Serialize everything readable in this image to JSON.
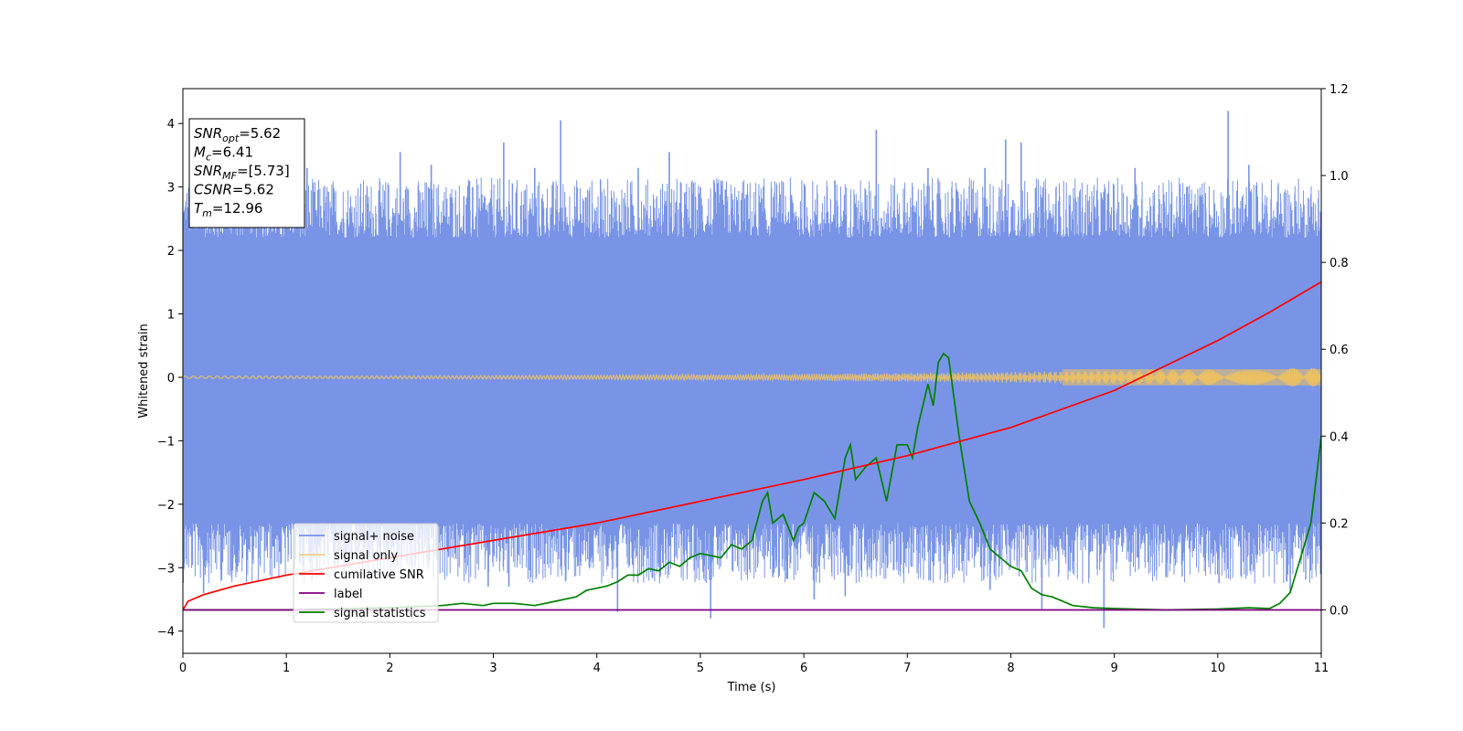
{
  "chart_data": {
    "type": "line",
    "xlabel": "Time (s)",
    "ylabel": "Whitened strain",
    "xlim": [
      0,
      11
    ],
    "ylim": [
      -4.35,
      4.55
    ],
    "ylim_right": [
      -0.1,
      1.2
    ],
    "x_ticks": [
      "0",
      "1",
      "2",
      "3",
      "4",
      "5",
      "6",
      "7",
      "8",
      "9",
      "10",
      "11"
    ],
    "y_ticks": [
      "−4",
      "−3",
      "−2",
      "−1",
      "0",
      "1",
      "2",
      "3",
      "4"
    ],
    "y_ticks_right": [
      "0.0",
      "0.2",
      "0.4",
      "0.6",
      "0.8",
      "1.0",
      "1.2"
    ],
    "grid": false,
    "legend_position": "lower-left",
    "series": [
      {
        "name": "signal+ noise",
        "color": "#7994e6",
        "axis": "left",
        "kind": "noise-band",
        "band_low": -2.3,
        "band_high": 2.2,
        "spikes": [
          {
            "x": 0.1,
            "y": 3.1
          },
          {
            "x": 0.2,
            "y": -3.4
          },
          {
            "x": 0.5,
            "y": 3.0
          },
          {
            "x": 1.0,
            "y": 3.1
          },
          {
            "x": 1.2,
            "y": 3.3
          },
          {
            "x": 1.5,
            "y": -3.0
          },
          {
            "x": 2.1,
            "y": 3.55
          },
          {
            "x": 2.4,
            "y": 3.35
          },
          {
            "x": 2.8,
            "y": 3.0
          },
          {
            "x": 2.95,
            "y": -3.3
          },
          {
            "x": 3.1,
            "y": 3.7
          },
          {
            "x": 3.15,
            "y": -3.3
          },
          {
            "x": 3.4,
            "y": 3.3
          },
          {
            "x": 3.65,
            "y": 4.05
          },
          {
            "x": 3.7,
            "y": -3.2
          },
          {
            "x": 4.2,
            "y": -3.7
          },
          {
            "x": 4.4,
            "y": 3.3
          },
          {
            "x": 4.7,
            "y": 3.55
          },
          {
            "x": 5.0,
            "y": 3.0
          },
          {
            "x": 5.1,
            "y": -3.8
          },
          {
            "x": 5.2,
            "y": 3.1
          },
          {
            "x": 5.7,
            "y": -3.15
          },
          {
            "x": 6.1,
            "y": -3.5
          },
          {
            "x": 6.3,
            "y": 3.1
          },
          {
            "x": 6.4,
            "y": -3.45
          },
          {
            "x": 6.7,
            "y": 3.9
          },
          {
            "x": 7.2,
            "y": 3.3
          },
          {
            "x": 7.5,
            "y": -3.05
          },
          {
            "x": 7.75,
            "y": 3.3
          },
          {
            "x": 7.8,
            "y": -3.35
          },
          {
            "x": 7.95,
            "y": 3.75
          },
          {
            "x": 8.1,
            "y": 3.7
          },
          {
            "x": 8.3,
            "y": -3.65
          },
          {
            "x": 8.9,
            "y": -3.95
          },
          {
            "x": 9.2,
            "y": 3.3
          },
          {
            "x": 9.5,
            "y": -3.15
          },
          {
            "x": 9.7,
            "y": 3.0
          },
          {
            "x": 10.1,
            "y": 4.2
          },
          {
            "x": 10.3,
            "y": 3.35
          },
          {
            "x": 10.7,
            "y": -3.4
          },
          {
            "x": 10.9,
            "y": 2.8
          }
        ]
      },
      {
        "name": "signal only",
        "color": "#f3c35a",
        "axis": "left",
        "kind": "chirp",
        "amplitude_start": 0.02,
        "amplitude_end": 0.15
      },
      {
        "name": "cumilative SNR",
        "color": "#ff0000",
        "axis": "right",
        "x": [
          0.0,
          0.05,
          0.2,
          0.5,
          1.0,
          2.0,
          3.0,
          4.0,
          5.0,
          6.0,
          7.0,
          8.0,
          9.0,
          10.0,
          10.5,
          11.0
        ],
        "y": [
          0.0,
          0.02,
          0.035,
          0.055,
          0.08,
          0.12,
          0.16,
          0.2,
          0.25,
          0.3,
          0.355,
          0.42,
          0.505,
          0.62,
          0.685,
          0.755
        ]
      },
      {
        "name": "label",
        "color": "#800080",
        "axis": "right",
        "x": [
          0,
          11
        ],
        "y": [
          0.0,
          0.0
        ]
      },
      {
        "name": "signal statistics",
        "color": "#008000",
        "axis": "right",
        "x": [
          0.0,
          1.0,
          2.0,
          2.5,
          2.7,
          2.9,
          3.0,
          3.2,
          3.4,
          3.6,
          3.7,
          3.8,
          3.9,
          4.0,
          4.1,
          4.2,
          4.3,
          4.4,
          4.5,
          4.6,
          4.7,
          4.8,
          4.9,
          5.0,
          5.1,
          5.2,
          5.3,
          5.4,
          5.5,
          5.6,
          5.65,
          5.7,
          5.8,
          5.9,
          5.95,
          6.0,
          6.1,
          6.2,
          6.3,
          6.4,
          6.45,
          6.5,
          6.6,
          6.7,
          6.8,
          6.9,
          7.0,
          7.05,
          7.1,
          7.2,
          7.25,
          7.3,
          7.35,
          7.4,
          7.5,
          7.6,
          7.7,
          7.8,
          7.9,
          8.0,
          8.1,
          8.2,
          8.3,
          8.4,
          8.6,
          8.8,
          9.0,
          9.5,
          10.0,
          10.3,
          10.5,
          10.6,
          10.7,
          10.8,
          10.9,
          11.0
        ],
        "y": [
          0.0,
          0.0,
          0.005,
          0.01,
          0.015,
          0.01,
          0.015,
          0.015,
          0.01,
          0.02,
          0.025,
          0.03,
          0.045,
          0.05,
          0.055,
          0.065,
          0.08,
          0.08,
          0.095,
          0.09,
          0.11,
          0.1,
          0.12,
          0.13,
          0.125,
          0.12,
          0.15,
          0.14,
          0.16,
          0.25,
          0.27,
          0.2,
          0.22,
          0.16,
          0.19,
          0.2,
          0.27,
          0.25,
          0.21,
          0.35,
          0.38,
          0.3,
          0.33,
          0.35,
          0.25,
          0.38,
          0.38,
          0.35,
          0.42,
          0.52,
          0.47,
          0.57,
          0.59,
          0.58,
          0.4,
          0.25,
          0.2,
          0.14,
          0.12,
          0.1,
          0.09,
          0.05,
          0.035,
          0.03,
          0.01,
          0.005,
          0.003,
          0.0,
          0.002,
          0.005,
          0.003,
          0.015,
          0.04,
          0.12,
          0.2,
          0.4
        ]
      }
    ],
    "annotation": {
      "lines": [
        {
          "main": "SNR",
          "sub": "opt",
          "value": "=5.62"
        },
        {
          "main": "M",
          "sub": "c",
          "value": "=6.41"
        },
        {
          "main": "SNR",
          "sub": "MF",
          "value": "=[5.73]"
        },
        {
          "main": "CSNR",
          "sub": "",
          "value": "=5.62"
        },
        {
          "main": "T",
          "sub": "m",
          "value": "=12.96"
        }
      ]
    }
  }
}
